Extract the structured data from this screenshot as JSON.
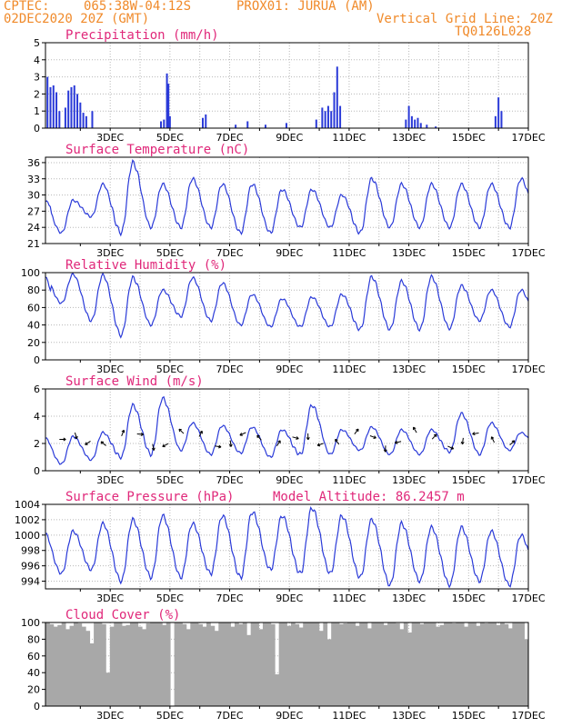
{
  "header": {
    "source": "CPTEC:",
    "coords": "065:38W-04:12S",
    "location": "PROX01: JURUA (AM)",
    "datetime": "02DEC2020 20Z (GMT)",
    "grid_note": "Vertical Grid Line: 20Z",
    "model_code": "TQ0126L028"
  },
  "date_ticks": [
    "3DEC",
    "5DEC",
    "7DEC",
    "9DEC",
    "11DEC",
    "13DEC",
    "15DEC",
    "17DEC"
  ],
  "colors": {
    "header": "#f08a2a",
    "title": "#e0287a",
    "series": "#2a3ad8",
    "cloud": "#a8a8a8"
  },
  "chart_data": [
    {
      "type": "bar",
      "title": "Precipitation (mm/h)",
      "ylim": [
        0,
        5
      ],
      "yticks": [
        0,
        1,
        2,
        3,
        4,
        5
      ],
      "x_unit": "days since 02DEC 00Z",
      "bars": [
        [
          0.9,
          3.0
        ],
        [
          1.0,
          2.4
        ],
        [
          1.1,
          2.5
        ],
        [
          1.2,
          2.1
        ],
        [
          1.3,
          1.0
        ],
        [
          1.5,
          1.2
        ],
        [
          1.6,
          2.2
        ],
        [
          1.7,
          2.4
        ],
        [
          1.8,
          2.5
        ],
        [
          1.9,
          2.0
        ],
        [
          2.0,
          1.5
        ],
        [
          2.1,
          0.9
        ],
        [
          2.2,
          0.7
        ],
        [
          2.4,
          1.0
        ],
        [
          4.7,
          0.4
        ],
        [
          4.8,
          0.5
        ],
        [
          4.9,
          3.2
        ],
        [
          4.95,
          2.6
        ],
        [
          5.0,
          0.7
        ],
        [
          6.1,
          0.6
        ],
        [
          6.2,
          0.8
        ],
        [
          7.2,
          0.2
        ],
        [
          7.6,
          0.4
        ],
        [
          8.2,
          0.2
        ],
        [
          8.9,
          0.3
        ],
        [
          9.9,
          0.5
        ],
        [
          10.1,
          1.2
        ],
        [
          10.2,
          1.0
        ],
        [
          10.3,
          1.3
        ],
        [
          10.4,
          1.0
        ],
        [
          10.5,
          2.1
        ],
        [
          10.6,
          3.6
        ],
        [
          10.7,
          1.3
        ],
        [
          12.9,
          0.5
        ],
        [
          13.0,
          1.3
        ],
        [
          13.1,
          0.7
        ],
        [
          13.2,
          0.5
        ],
        [
          13.3,
          0.6
        ],
        [
          13.4,
          0.3
        ],
        [
          13.6,
          0.2
        ],
        [
          13.9,
          0.1
        ],
        [
          15.9,
          0.7
        ],
        [
          16.0,
          1.8
        ],
        [
          16.1,
          1.0
        ]
      ]
    },
    {
      "type": "line",
      "title": "Surface Temperature (nC)",
      "ylim": [
        21,
        37
      ],
      "yticks": [
        21,
        24,
        27,
        30,
        33,
        36
      ],
      "daily_max": [
        29,
        32,
        36,
        32,
        33,
        32,
        32,
        31,
        31,
        30,
        33,
        32,
        32,
        32,
        32,
        33
      ],
      "daily_min": [
        23,
        26,
        23,
        24,
        24,
        24,
        23,
        23,
        24,
        24,
        23,
        24,
        24,
        24,
        24,
        24
      ]
    },
    {
      "type": "line",
      "title": "Relative Humidity (%)",
      "ylim": [
        0,
        100
      ],
      "yticks": [
        0,
        20,
        40,
        60,
        80,
        100
      ],
      "daily_max": [
        98,
        97,
        94,
        80,
        94,
        88,
        75,
        70,
        72,
        75,
        95,
        90,
        95,
        85,
        80,
        80
      ],
      "daily_min": [
        65,
        45,
        28,
        40,
        50,
        45,
        40,
        38,
        38,
        38,
        35,
        35,
        35,
        36,
        45,
        38
      ]
    },
    {
      "type": "line",
      "title": "Surface Wind (m/s)",
      "ylim": [
        0,
        6
      ],
      "yticks": [
        0,
        2,
        4,
        6
      ],
      "daily_max": [
        2.5,
        2.8,
        4.8,
        5.3,
        3.5,
        3.3,
        3.2,
        3.0,
        4.8,
        3.0,
        3.2,
        3.0,
        3.0,
        4.2,
        3.5,
        2.8
      ],
      "daily_min": [
        0.5,
        0.8,
        1.0,
        1.2,
        1.5,
        1.2,
        1.3,
        1.0,
        1.2,
        1.2,
        1.5,
        1.2,
        1.2,
        1.4,
        1.2,
        1.5
      ]
    },
    {
      "type": "line",
      "title": "Surface Pressure (hPa)",
      "annotation": "Model Altitude: 86.2457 m",
      "ylim": [
        993,
        1004
      ],
      "yticks": [
        994,
        996,
        998,
        1000,
        1002,
        1004
      ],
      "daily_max": [
        1000.5,
        1001.5,
        1002.0,
        1002.5,
        1001.5,
        1002.5,
        1003.0,
        1002.5,
        1003.5,
        1002.5,
        1002.0,
        1001.5,
        1001.0,
        1001.0,
        1000.5,
        1000.0
      ],
      "daily_min": [
        995.0,
        995.5,
        994.0,
        994.5,
        994.5,
        995.0,
        994.5,
        995.5,
        995.0,
        995.0,
        994.5,
        993.5,
        994.0,
        993.5,
        994.0,
        993.5
      ]
    },
    {
      "type": "area",
      "title": "Cloud Cover (%)",
      "ylim": [
        0,
        100
      ],
      "yticks": [
        0,
        20,
        40,
        60,
        80,
        100
      ],
      "values": [
        100,
        98,
        95,
        97,
        100,
        92,
        96,
        100,
        99,
        95,
        90,
        75,
        100,
        100,
        98,
        40,
        95,
        100,
        100,
        96,
        97,
        100,
        100,
        95,
        92,
        99,
        100,
        100,
        100,
        97,
        100,
        0,
        100,
        100,
        98,
        92,
        100,
        100,
        98,
        95,
        100,
        96,
        90,
        100,
        100,
        100,
        95,
        100,
        98,
        100,
        85,
        100,
        100,
        92,
        100,
        100,
        98,
        38,
        100,
        100,
        96,
        100,
        98,
        94,
        100,
        100,
        100,
        100,
        90,
        100,
        80,
        100,
        100,
        98,
        99,
        100,
        100,
        96,
        100,
        100,
        93,
        100,
        100,
        100,
        97,
        100,
        100,
        99,
        92,
        100,
        88,
        100,
        100,
        98,
        100,
        100,
        100,
        95,
        97,
        100,
        100,
        99,
        100,
        100,
        95,
        100,
        100,
        96,
        100,
        99,
        100,
        100,
        97,
        100,
        98,
        93,
        100,
        100,
        100,
        80
      ]
    }
  ]
}
